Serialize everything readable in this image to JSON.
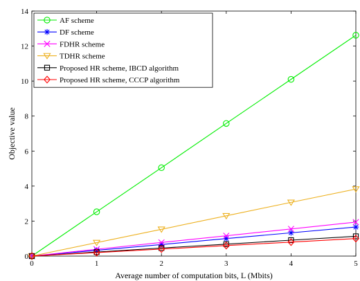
{
  "chart_data": {
    "type": "line",
    "title": "",
    "xlabel": "Average number of computation bits, L (Mbits)",
    "ylabel": "Objective value",
    "x": [
      0,
      1,
      2,
      3,
      4,
      5
    ],
    "xlim": [
      0,
      5
    ],
    "ylim": [
      0,
      14
    ],
    "xticks": [
      "0",
      "1",
      "2",
      "3",
      "4",
      "5"
    ],
    "yticks": [
      "0",
      "2",
      "4",
      "6",
      "8",
      "10",
      "12",
      "14"
    ],
    "grid": false,
    "legend_position": "top-left",
    "series": [
      {
        "name": "AF scheme",
        "color": "#00ee00",
        "marker": "circle",
        "values": [
          0,
          2.53,
          5.05,
          7.58,
          10.1,
          12.62
        ]
      },
      {
        "name": "DF scheme",
        "color": "#0000ff",
        "marker": "asterisk",
        "values": [
          0,
          0.33,
          0.66,
          1.0,
          1.33,
          1.66
        ]
      },
      {
        "name": "FDHR scheme",
        "color": "#ff00ff",
        "marker": "x",
        "values": [
          0,
          0.39,
          0.78,
          1.16,
          1.55,
          1.94
        ]
      },
      {
        "name": "TDHR scheme",
        "color": "#edb120",
        "marker": "triangle-down",
        "values": [
          0,
          0.77,
          1.53,
          2.3,
          3.07,
          3.83
        ]
      },
      {
        "name": "Proposed HR scheme, IBCD algorithm",
        "color": "#000000",
        "marker": "square",
        "values": [
          0,
          0.23,
          0.46,
          0.68,
          0.91,
          1.13
        ]
      },
      {
        "name": "Proposed HR scheme, CCCP algorithm",
        "color": "#ff0000",
        "marker": "diamond",
        "values": [
          0,
          0.2,
          0.4,
          0.6,
          0.8,
          1.0
        ]
      }
    ]
  }
}
